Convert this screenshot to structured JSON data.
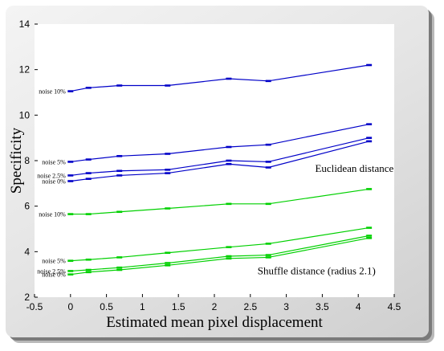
{
  "chart_data": {
    "type": "line",
    "title": "",
    "xlabel": "Estimated mean pixel displacement",
    "ylabel": "Specificity",
    "xlim": [
      -0.5,
      4.5
    ],
    "ylim": [
      2,
      14
    ],
    "x_ticks": [
      "-0.5",
      "0",
      "0.5",
      "1",
      "1.5",
      "2",
      "2.5",
      "3",
      "3.5",
      "4",
      "4.5"
    ],
    "y_ticks": [
      "2",
      "4",
      "6",
      "8",
      "10",
      "12",
      "14"
    ],
    "grid": false,
    "x": [
      0,
      0.25,
      0.68,
      1.35,
      2.2,
      2.75,
      4.15
    ],
    "annotations": [
      {
        "text": "Euclidean distance",
        "x": 3.4,
        "y": 7.5
      },
      {
        "text": "Shuffle distance (radius 2.1)",
        "x": 2.6,
        "y": 3.0
      }
    ],
    "series": [
      {
        "label": "noise 10%",
        "group": "Euclidean distance",
        "color": "#0000c8",
        "values": [
          11.05,
          11.2,
          11.3,
          11.3,
          11.6,
          11.5,
          12.2
        ]
      },
      {
        "label": "noise 5%",
        "group": "Euclidean distance",
        "color": "#0000c8",
        "values": [
          7.95,
          8.05,
          8.2,
          8.3,
          8.6,
          8.7,
          9.6
        ]
      },
      {
        "label": "noise 2.5%",
        "group": "Euclidean distance",
        "color": "#0000c8",
        "values": [
          7.35,
          7.45,
          7.55,
          7.6,
          8.0,
          7.95,
          9.0
        ]
      },
      {
        "label": "noise 0%",
        "group": "Euclidean distance",
        "color": "#0000c8",
        "values": [
          7.1,
          7.2,
          7.35,
          7.45,
          7.85,
          7.7,
          8.85
        ]
      },
      {
        "label": "noise 10%",
        "group": "Shuffle distance (radius 2.1)",
        "color": "#00d000",
        "values": [
          5.65,
          5.65,
          5.75,
          5.9,
          6.1,
          6.1,
          6.75
        ]
      },
      {
        "label": "noise 5%",
        "group": "Shuffle distance (radius 2.1)",
        "color": "#00d000",
        "values": [
          3.6,
          3.65,
          3.75,
          3.95,
          4.2,
          4.35,
          5.05
        ]
      },
      {
        "label": "noise 2.5%",
        "group": "Shuffle distance (radius 2.1)",
        "color": "#00d000",
        "values": [
          3.15,
          3.2,
          3.3,
          3.5,
          3.8,
          3.85,
          4.7
        ]
      },
      {
        "label": "noise 0%",
        "group": "Shuffle distance (radius 2.1)",
        "color": "#00d000",
        "values": [
          3.0,
          3.1,
          3.2,
          3.4,
          3.7,
          3.75,
          4.6
        ]
      }
    ]
  }
}
